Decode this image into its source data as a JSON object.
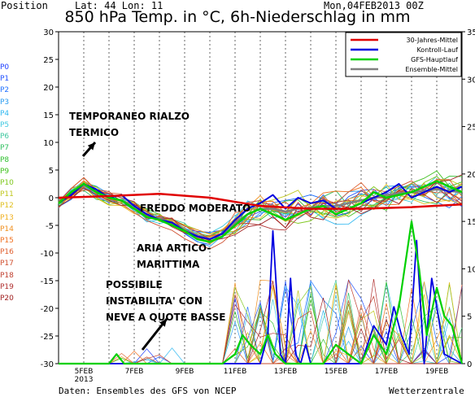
{
  "header": {
    "position": "Position",
    "lat_lon": "Lat: 44 Lon: 11",
    "date": "Mon,04FEB2013 00Z",
    "title": "850 hPa Temp. in °C, 6h-Niederschlag in mm"
  },
  "members": [
    "P0",
    "P1",
    "P2",
    "P3",
    "P4",
    "P5",
    "P6",
    "P7",
    "P8",
    "P9",
    "P10",
    "P11",
    "P12",
    "P13",
    "P14",
    "P15",
    "P16",
    "P17",
    "P18",
    "P19",
    "P20"
  ],
  "member_colors": [
    "#2040ff",
    "#2050ff",
    "#2070ff",
    "#2a9cf0",
    "#30b8f0",
    "#40c8e0",
    "#40c8a0",
    "#30c060",
    "#30c030",
    "#40c020",
    "#80c820",
    "#c0c820",
    "#e0c020",
    "#f0b020",
    "#f09020",
    "#f07020",
    "#e06030",
    "#d05030",
    "#c04030",
    "#b03030",
    "#a02020"
  ],
  "annotations": {
    "temporaneo": [
      "TEMPORANEO RIALZO",
      "TERMICO"
    ],
    "freddo": "FREDDO MODERATO",
    "aria": [
      "ARIA ARTICO-",
      "MARITTIMA"
    ],
    "possibile": [
      "POSSIBILE",
      "INSTABILITA' CON",
      "NEVE A QUOTE BASSE"
    ]
  },
  "footer": {
    "source": "Daten: Ensembles des GFS von NCEP",
    "brand": "Wetterzentrale"
  },
  "chart_data": {
    "type": "line",
    "title": "850 hPa Temp. in °C, 6h-Niederschlag in mm",
    "x_ticks": [
      "5FEB\n2013",
      "7FEB",
      "9FEB",
      "11FEB",
      "13FEB",
      "15FEB",
      "17FEB",
      "19FEB"
    ],
    "x_range_days": [
      4.0,
      20.0
    ],
    "y_left": {
      "range": [
        -30,
        30
      ],
      "ticks": [
        30,
        25,
        20,
        15,
        10,
        5,
        0,
        -5,
        -10,
        -15,
        -20,
        -25,
        -30
      ]
    },
    "y_right": {
      "range": [
        0,
        35
      ],
      "ticks": [
        35,
        30,
        25,
        20,
        15,
        10,
        5,
        0
      ]
    },
    "legend": {
      "position": "top-right",
      "items": [
        {
          "name": "30-Jahres-Mittel",
          "color": "#e00000"
        },
        {
          "name": "Kontroll-Lauf",
          "color": "#0000e0"
        },
        {
          "name": "GFS-Hauptlauf",
          "color": "#00d000"
        },
        {
          "name": "Ensemble-Mittel",
          "color": "#808080"
        }
      ]
    },
    "series": {
      "climatology": {
        "x": [
          4.0,
          6,
          8,
          10,
          12,
          14,
          16,
          18,
          20
        ],
        "y": [
          0,
          0.3,
          0.7,
          0,
          -1.5,
          -2,
          -2,
          -1.7,
          -1.2
        ]
      },
      "control": {
        "x": [
          4.0,
          4.5,
          5,
          5.5,
          6,
          6.5,
          7,
          7.5,
          8,
          8.5,
          9,
          9.5,
          10,
          10.5,
          11,
          11.5,
          12,
          12.5,
          13,
          13.5,
          14,
          14.5,
          15,
          15.5,
          16,
          16.5,
          17,
          17.5,
          18,
          18.5,
          19,
          19.5,
          20
        ],
        "y": [
          -1,
          0.5,
          2.5,
          1.5,
          0,
          0.5,
          -1.5,
          -3,
          -4,
          -4.5,
          -6,
          -7,
          -7.5,
          -6.5,
          -4,
          -2,
          -1,
          0.5,
          -2,
          0,
          -1,
          -0.5,
          -2,
          -2,
          -1,
          0,
          1,
          2.5,
          0,
          1,
          2,
          1,
          2
        ]
      },
      "operational": {
        "x": [
          4.0,
          4.5,
          5,
          5.5,
          6,
          6.5,
          7,
          7.5,
          8,
          8.5,
          9,
          9.5,
          10,
          10.5,
          11,
          11.5,
          12,
          12.5,
          13,
          13.5,
          14,
          14.5,
          15,
          15.5,
          16,
          16.5,
          17,
          17.5,
          18,
          18.5,
          19,
          19.5,
          20
        ],
        "y": [
          -1,
          1,
          2.5,
          1,
          0,
          -0.5,
          -2,
          -3.5,
          -4,
          -5,
          -6,
          -7.5,
          -8,
          -7,
          -5,
          -3,
          -2,
          -3,
          -4,
          -3,
          -2,
          -1.5,
          -3,
          -2,
          -1,
          1,
          0,
          0.5,
          1,
          2,
          3,
          2,
          1
        ]
      },
      "ensemble_mean": {
        "x": [
          4.0,
          4.5,
          5,
          5.5,
          6,
          6.5,
          7,
          7.5,
          8,
          8.5,
          9,
          9.5,
          10,
          10.5,
          11,
          11.5,
          12,
          12.5,
          13,
          13.5,
          14,
          14.5,
          15,
          15.5,
          16,
          16.5,
          17,
          17.5,
          18,
          18.5,
          19,
          19.5,
          20
        ],
        "y": [
          -1,
          0.8,
          2.3,
          1,
          0,
          -0.5,
          -1.5,
          -3,
          -3.8,
          -4.5,
          -5.8,
          -6.8,
          -7.5,
          -6.5,
          -4.5,
          -3,
          -2,
          -2,
          -2.5,
          -2,
          -1.8,
          -1.5,
          -1.5,
          -1,
          -0.5,
          0,
          0.5,
          0.8,
          1,
          1.2,
          1.5,
          1.2,
          1
        ]
      },
      "control_precip": {
        "x": [
          4,
          12,
          12.3,
          12.5,
          12.8,
          13,
          13.2,
          13.4,
          13.6,
          13.8,
          14,
          16,
          16.5,
          17,
          17.3,
          17.6,
          17.9,
          18.2,
          18.5,
          18.8,
          19,
          19.3,
          20
        ],
        "y": [
          0,
          0,
          3,
          14,
          1,
          0,
          9,
          1,
          0,
          2,
          0,
          0,
          4,
          2,
          6,
          3,
          1,
          13,
          0,
          9,
          6,
          1,
          0
        ]
      },
      "operational_precip": {
        "x": [
          4,
          6,
          6.3,
          6.6,
          7,
          9,
          10.5,
          11,
          11.3,
          11.6,
          12,
          12.3,
          12.6,
          13,
          14.5,
          15,
          16,
          16.5,
          17,
          17.5,
          18,
          18.3,
          18.6,
          19,
          19.3,
          19.6,
          20
        ],
        "y": [
          0,
          0,
          1,
          0,
          0,
          0,
          0,
          1,
          3,
          2,
          1,
          3,
          1,
          0,
          0,
          2,
          0,
          3,
          1,
          6,
          15,
          10,
          3,
          8,
          5,
          4,
          0
        ]
      }
    }
  }
}
